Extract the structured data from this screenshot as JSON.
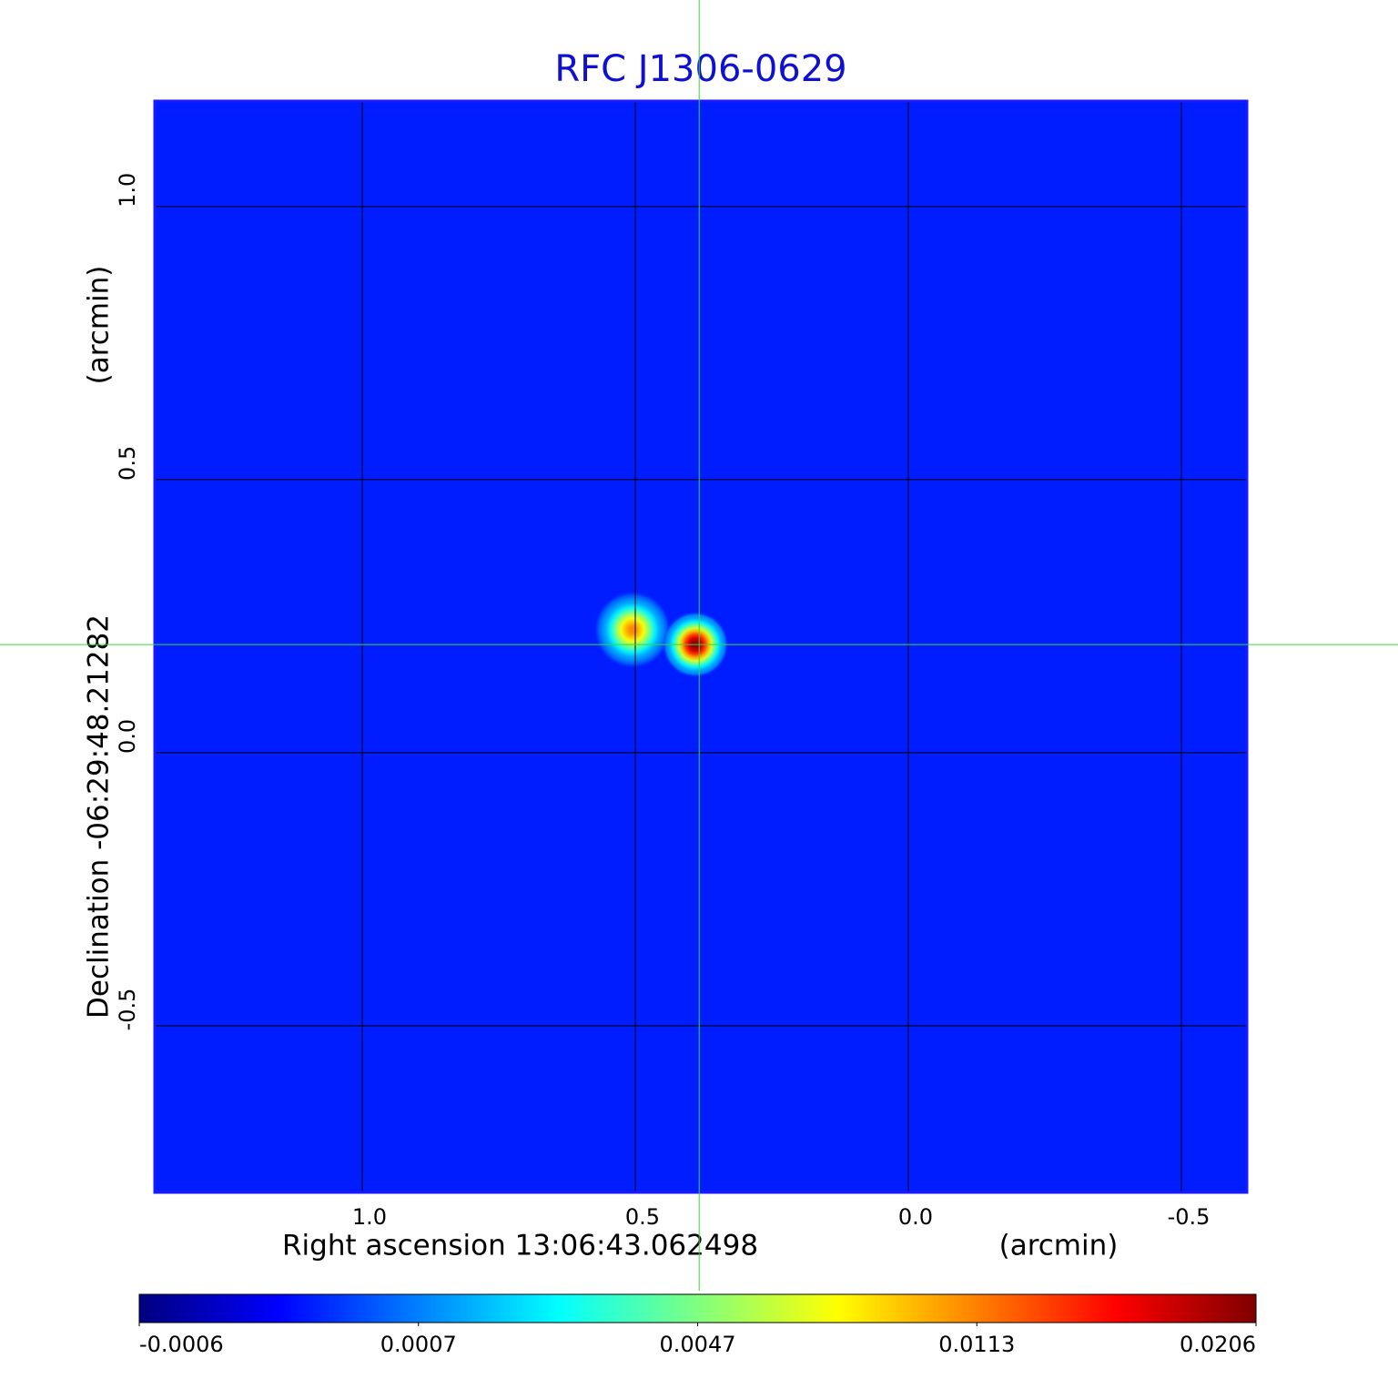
{
  "chart_data": {
    "type": "image-map",
    "title": "RFC J1306-0629",
    "xlabel": "Right ascension  13:06:43.062498",
    "xunit": "(arcmin)",
    "ylabel": "Declination  -06:29:48.21282",
    "yunit": "(arcmin)",
    "xlim": [
      1.38,
      -0.62
    ],
    "ylim": [
      -0.805,
      1.193
    ],
    "xticks": [
      {
        "value": 1,
        "label": "1.0"
      },
      0.5,
      {
        "value": 0,
        "label": "0.0"
      },
      -0.5
    ],
    "yticks": [
      {
        "value": 1,
        "label": "1.0"
      },
      0.5,
      {
        "value": 0,
        "label": "0.0"
      },
      -0.5
    ],
    "grid": true,
    "frame_color": "#1a1aff",
    "title_color": "#1010d0",
    "crosshair": {
      "x": 0.383,
      "y": 0.198,
      "color": "#33dd33"
    },
    "colormap": "jet",
    "cticks": [
      -0.0006,
      0.0007,
      0.0047,
      0.0113,
      0.0206
    ],
    "background": 0.0002,
    "sources": [
      {
        "x": 0.505,
        "y": 0.225,
        "peak": 0.0113,
        "radius": 0.07
      },
      {
        "x": 0.39,
        "y": 0.198,
        "peak": 0.0206,
        "radius": 0.06
      }
    ]
  }
}
